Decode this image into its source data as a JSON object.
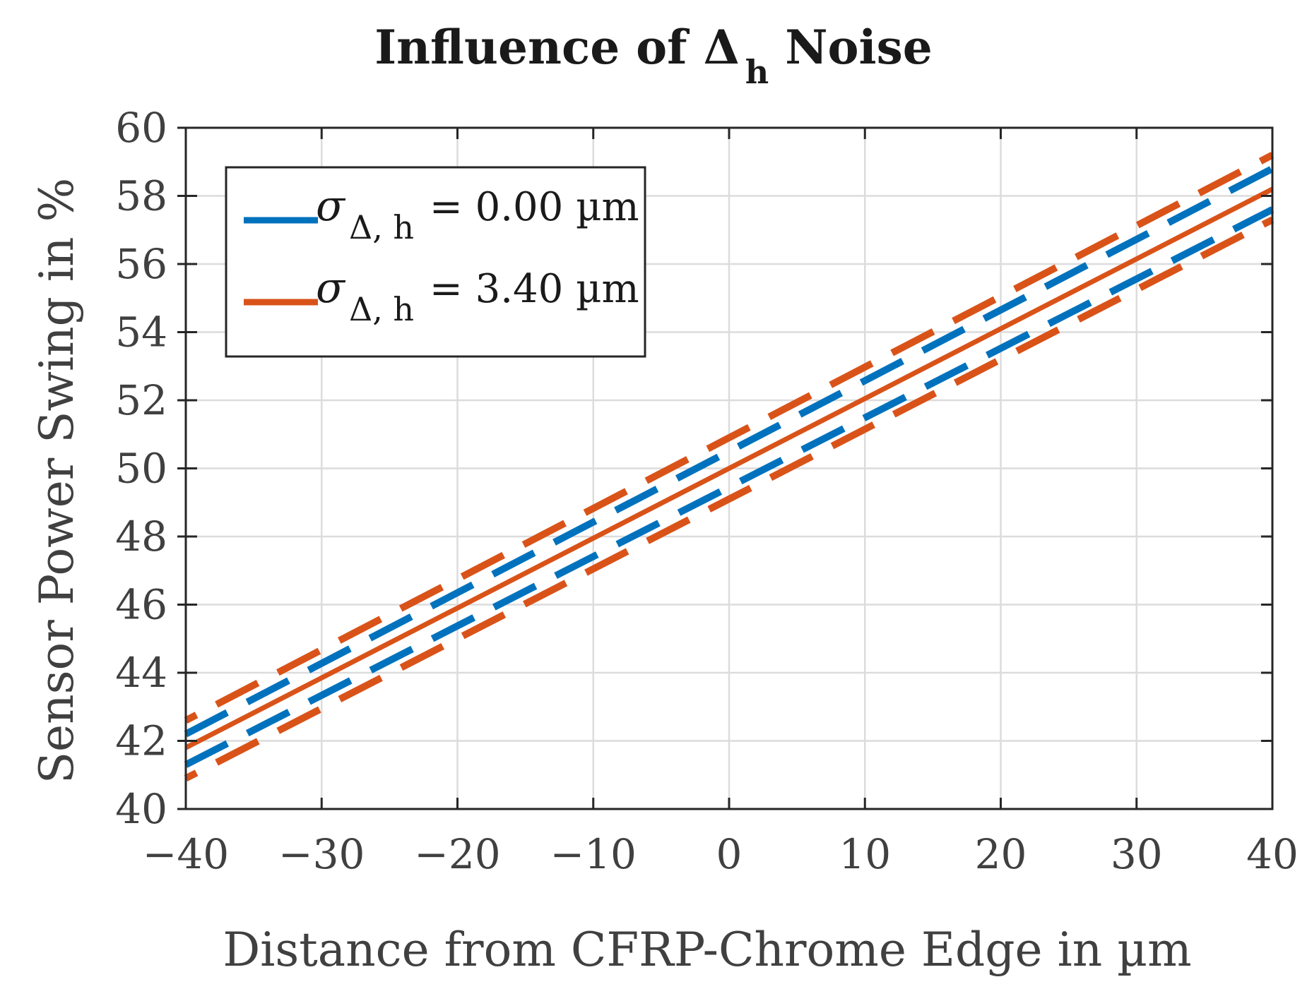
{
  "chart_data": {
    "type": "line",
    "title": {
      "prefix": "Influence of ",
      "symbol": "Δ",
      "subscript": "h",
      "suffix": " Noise"
    },
    "xlabel": "Distance from CFRP-Chrome Edge in µm",
    "ylabel": "Sensor Power Swing in %",
    "xlim": [
      -40,
      40
    ],
    "ylim": [
      40,
      60
    ],
    "xticks": [
      -40,
      -30,
      -20,
      -10,
      0,
      10,
      20,
      30,
      40
    ],
    "xtick_labels": [
      "−40",
      "−30",
      "−20",
      "−10",
      "0",
      "10",
      "20",
      "30",
      "40"
    ],
    "yticks": [
      40,
      42,
      44,
      46,
      48,
      50,
      52,
      54,
      56,
      58,
      60
    ],
    "ytick_labels": [
      "40",
      "42",
      "44",
      "46",
      "48",
      "50",
      "52",
      "54",
      "56",
      "58",
      "60"
    ],
    "grid": true,
    "legend_position": "top-left",
    "series": [
      {
        "name": "σ Δ, h = 0.00 µm",
        "legend": {
          "sigma": "σ",
          "subscript": "Δ, h",
          "value": " = 0.00 µm"
        },
        "color": "#0072BD",
        "x": [
          -40,
          40
        ],
        "mean": [
          41.8,
          58.2
        ],
        "upper": [
          42.2,
          58.8
        ],
        "lower": [
          41.3,
          57.6
        ]
      },
      {
        "name": "σ Δ, h = 3.40 µm",
        "legend": {
          "sigma": "σ",
          "subscript": "Δ, h",
          "value": " = 3.40 µm"
        },
        "color": "#D95319",
        "x": [
          -40,
          40
        ],
        "mean": [
          41.8,
          58.2
        ],
        "upper": [
          42.6,
          59.2
        ],
        "lower": [
          40.9,
          57.3
        ]
      }
    ]
  }
}
